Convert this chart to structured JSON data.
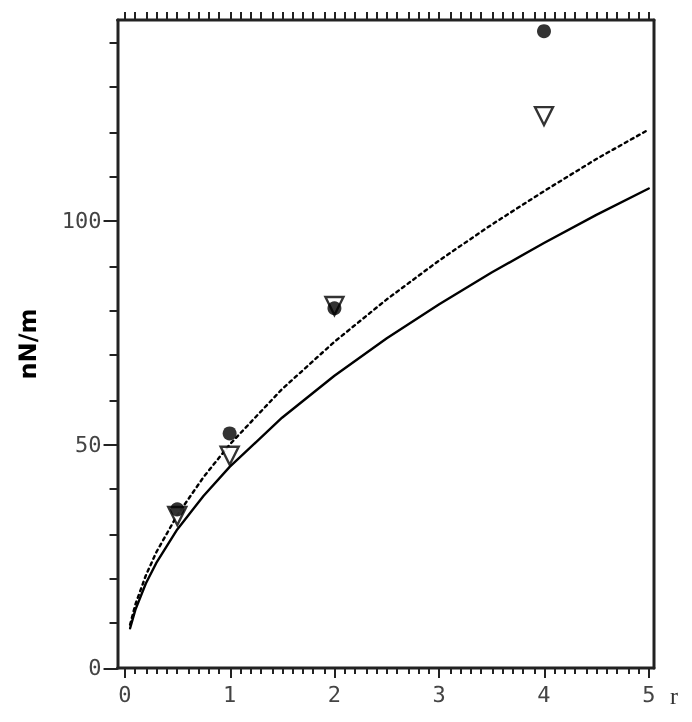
{
  "chart_data": {
    "type": "line",
    "xlabel": "r",
    "ylabel": "nN/m",
    "xlim": [
      -0.07,
      5.05
    ],
    "xticks": [
      0,
      1,
      2,
      3,
      4,
      5
    ],
    "ylim": [
      0,
      145
    ],
    "yticks": [
      0,
      50,
      100
    ],
    "grid": false,
    "series": [
      {
        "color": "#000000",
        "line_style": "solid",
        "marker": "none",
        "x": [
          0.05,
          0.1,
          0.2,
          0.3,
          0.5,
          0.75,
          1,
          1.5,
          2,
          2.5,
          3,
          3.5,
          4,
          4.5,
          5
        ],
        "values": [
          8.9,
          13.0,
          18.9,
          23.5,
          31.0,
          38.5,
          45,
          56.0,
          65.4,
          73.8,
          81.4,
          88.5,
          95.1,
          101.4,
          107.3
        ]
      },
      {
        "color": "#000000",
        "line_style": "dotted",
        "marker": "none",
        "x": [
          0.05,
          0.1,
          0.2,
          0.3,
          0.5,
          0.75,
          1,
          1.5,
          2,
          2.5,
          3,
          3.5,
          4,
          4.5,
          5
        ],
        "values": [
          9.7,
          14.2,
          20.7,
          25.9,
          34.2,
          42.7,
          50,
          62.4,
          73.0,
          82.5,
          91.2,
          99.2,
          106.7,
          113.9,
          120.5
        ]
      },
      {
        "type": "scatter",
        "color": "#000000",
        "marker": "circle",
        "x": [
          0.5,
          1,
          2,
          4
        ],
        "values": [
          35.5,
          52.5,
          80.5,
          142.5
        ]
      },
      {
        "type": "scatter",
        "color": "#000000",
        "marker": "triangle",
        "x": [
          0.5,
          1,
          2,
          4
        ],
        "values": [
          34,
          47.5,
          81,
          123.5
        ]
      }
    ]
  }
}
